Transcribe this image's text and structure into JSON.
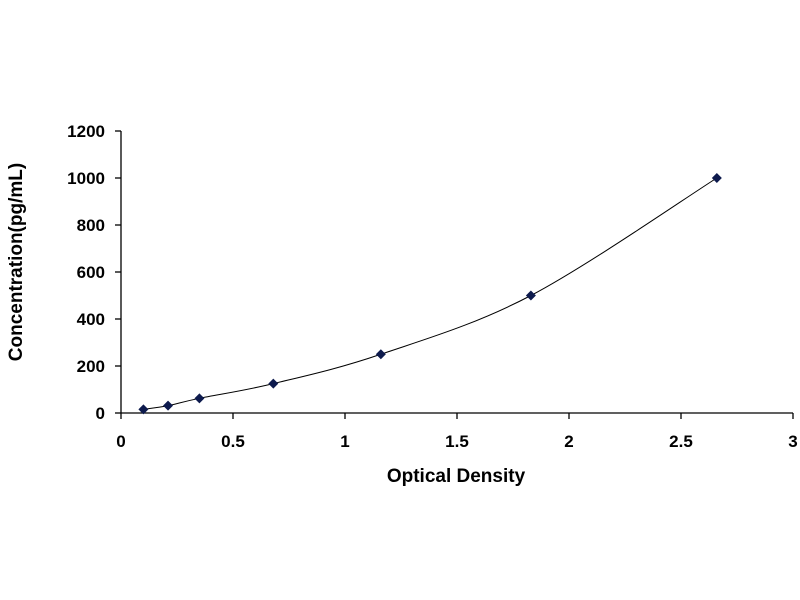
{
  "chart_data": {
    "type": "scatter",
    "title": "",
    "xlabel": "Optical Density",
    "ylabel": "Concentration(pg/mL)",
    "xlim": [
      0,
      3
    ],
    "ylim": [
      0,
      1200
    ],
    "xticks": [
      "0",
      "0.5",
      "1",
      "1.5",
      "2",
      "2.5",
      "3"
    ],
    "yticks": [
      "0",
      "200",
      "400",
      "600",
      "800",
      "1000",
      "1200"
    ],
    "grid": false,
    "legend": "none",
    "trendline": "smooth curve through points",
    "series": [
      {
        "x": [
          0.1,
          0.21,
          0.35,
          0.68,
          1.16,
          1.83,
          2.66
        ],
        "y": [
          15.6,
          31.2,
          62.5,
          125,
          250,
          500,
          1000
        ]
      }
    ],
    "colors": {
      "marker": "#0d1a4d",
      "line": "#000000",
      "axis": "#000000"
    }
  }
}
